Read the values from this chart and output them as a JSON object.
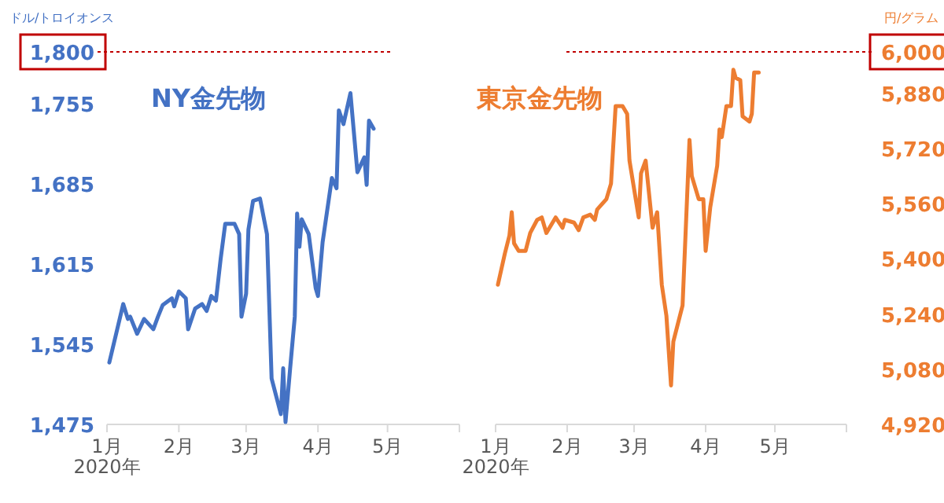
{
  "chart_data": [
    {
      "type": "line",
      "title": "NY金先物",
      "ylabel": "ドル/トロイオンス",
      "x": [
        "2020-01-02",
        "2020-01-08",
        "2020-01-10",
        "2020-01-11",
        "2020-01-14",
        "2020-01-17",
        "2020-01-21",
        "2020-01-23",
        "2020-01-25",
        "2020-01-29",
        "2020-01-30",
        "2020-02-01",
        "2020-02-04",
        "2020-02-05",
        "2020-02-08",
        "2020-02-11",
        "2020-02-13",
        "2020-02-15",
        "2020-02-17",
        "2020-02-19",
        "2020-02-21",
        "2020-02-25",
        "2020-02-27",
        "2020-02-28",
        "2020-03-01",
        "2020-03-02",
        "2020-03-04",
        "2020-03-07",
        "2020-03-10",
        "2020-03-12",
        "2020-03-16",
        "2020-03-17",
        "2020-03-18",
        "2020-03-20",
        "2020-03-22",
        "2020-03-23",
        "2020-03-24",
        "2020-03-25",
        "2020-03-28",
        "2020-03-31",
        "2020-04-01",
        "2020-04-03",
        "2020-04-07",
        "2020-04-09",
        "2020-04-10",
        "2020-04-12",
        "2020-04-15",
        "2020-04-18",
        "2020-04-21",
        "2020-04-22",
        "2020-04-23",
        "2020-04-25"
      ],
      "series": [
        {
          "color": "#4472c4",
          "values": [
            1529,
            1580,
            1567,
            1569,
            1554,
            1567,
            1558,
            1569,
            1579,
            1585,
            1578,
            1591,
            1585,
            1558,
            1576,
            1580,
            1574,
            1587,
            1583,
            1619,
            1650,
            1650,
            1641,
            1569,
            1589,
            1645,
            1670,
            1672,
            1641,
            1515,
            1484,
            1524,
            1477,
            1524,
            1569,
            1659,
            1630,
            1654,
            1641,
            1594,
            1587,
            1634,
            1690,
            1681,
            1749,
            1737,
            1764,
            1695,
            1708,
            1684,
            1740,
            1733
          ]
        }
      ],
      "xlim": [
        "2020-01-01",
        "2020-06-01"
      ],
      "xticks": [
        {
          "value": "2020-01-01",
          "label": "1月\n2020年"
        },
        {
          "value": "2020-02-01",
          "label": "2月"
        },
        {
          "value": "2020-03-01",
          "label": "3月"
        },
        {
          "value": "2020-04-01",
          "label": "4月"
        },
        {
          "value": "2020-05-01",
          "label": "5月"
        },
        {
          "value": "2020-06-01",
          "label": null
        }
      ],
      "ylim": [
        1475,
        1800
      ],
      "yticks": [
        {
          "value": 1475,
          "label": "1,475"
        },
        {
          "value": 1545,
          "label": "1,545"
        },
        {
          "value": 1615,
          "label": "1,615"
        },
        {
          "value": 1685,
          "label": "1,685"
        },
        {
          "value": 1755,
          "label": "1,755"
        },
        {
          "value": 1800,
          "label": "1,800"
        }
      ],
      "ref_lines": [
        {
          "axis": "y",
          "value": 1800,
          "color": "#c00000",
          "line_style": "dotted"
        }
      ],
      "grid": false,
      "marker": "none",
      "line_style": "solid"
    },
    {
      "type": "line",
      "title": "東京金先物",
      "y2label": "円/グラム",
      "x": [
        "2020-01-02",
        "2020-01-05",
        "2020-01-07",
        "2020-01-08",
        "2020-01-09",
        "2020-01-11",
        "2020-01-14",
        "2020-01-16",
        "2020-01-19",
        "2020-01-21",
        "2020-01-23",
        "2020-01-27",
        "2020-01-30",
        "2020-01-31",
        "2020-02-04",
        "2020-02-06",
        "2020-02-08",
        "2020-02-11",
        "2020-02-13",
        "2020-02-14",
        "2020-02-18",
        "2020-02-20",
        "2020-02-22",
        "2020-02-25",
        "2020-02-27",
        "2020-02-28",
        "2020-03-03",
        "2020-03-04",
        "2020-03-06",
        "2020-03-09",
        "2020-03-11",
        "2020-03-13",
        "2020-03-15",
        "2020-03-17",
        "2020-03-18",
        "2020-03-22",
        "2020-03-25",
        "2020-03-26",
        "2020-03-29",
        "2020-03-31",
        "2020-04-01",
        "2020-04-03",
        "2020-04-06",
        "2020-04-07",
        "2020-04-08",
        "2020-04-10",
        "2020-04-12",
        "2020-04-13",
        "2020-04-14",
        "2020-04-16",
        "2020-04-17",
        "2020-04-20",
        "2020-04-21",
        "2020-04-22",
        "2020-04-24"
      ],
      "series": [
        {
          "color": "#ed7d31",
          "axis": "y2",
          "values": [
            5325,
            5415,
            5468,
            5535,
            5445,
            5423,
            5423,
            5475,
            5513,
            5520,
            5475,
            5520,
            5490,
            5513,
            5505,
            5483,
            5520,
            5528,
            5513,
            5543,
            5573,
            5618,
            5843,
            5843,
            5820,
            5685,
            5520,
            5648,
            5685,
            5490,
            5535,
            5325,
            5235,
            5033,
            5160,
            5265,
            5745,
            5640,
            5573,
            5573,
            5423,
            5550,
            5670,
            5775,
            5753,
            5843,
            5843,
            5948,
            5925,
            5918,
            5813,
            5798,
            5820,
            5940,
            5940
          ]
        }
      ],
      "xlim": [
        "2020-01-01",
        "2020-06-01"
      ],
      "xticks": [
        {
          "value": "2020-01-01",
          "label": "1月\n2020年"
        },
        {
          "value": "2020-02-01",
          "label": "2月"
        },
        {
          "value": "2020-03-01",
          "label": "3月"
        },
        {
          "value": "2020-04-01",
          "label": "4月"
        },
        {
          "value": "2020-05-01",
          "label": "5月"
        },
        {
          "value": "2020-06-01",
          "label": null
        }
      ],
      "y2lim": [
        4920,
        6000
      ],
      "y2ticks": [
        {
          "value": 4920,
          "label": "4,920"
        },
        {
          "value": 5080,
          "label": "5,080"
        },
        {
          "value": 5240,
          "label": "5,240"
        },
        {
          "value": 5400,
          "label": "5,400"
        },
        {
          "value": 5560,
          "label": "5,560"
        },
        {
          "value": 5720,
          "label": "5,720"
        },
        {
          "value": 5880,
          "label": "5,880"
        },
        {
          "value": 6000,
          "label": "6,000"
        }
      ],
      "ref_lines": [
        {
          "axis": "y2",
          "value": 6000,
          "color": "#c00000",
          "line_style": "dotted"
        }
      ],
      "grid": false,
      "marker": "none",
      "line_style": "solid"
    }
  ]
}
